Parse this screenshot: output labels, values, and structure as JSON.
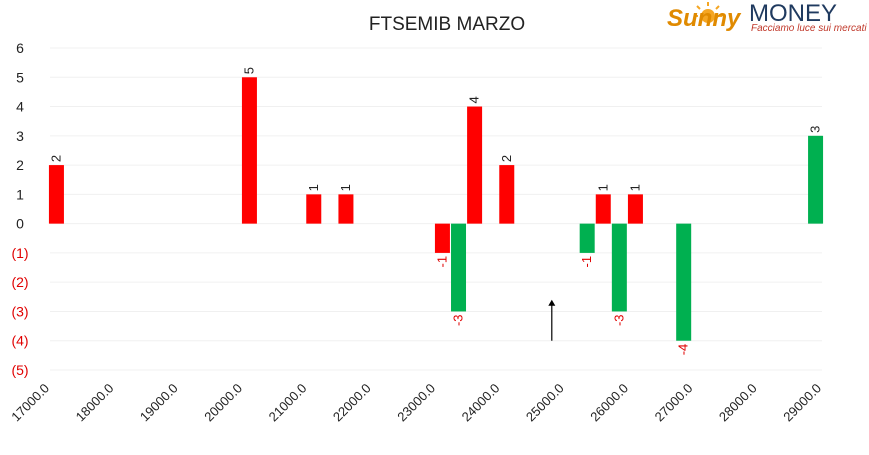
{
  "chart_data": {
    "type": "bar",
    "title": "FTSEMIB MARZO",
    "xlabel": "",
    "ylabel": "",
    "ylim": [
      -5,
      6
    ],
    "xlim": [
      17000,
      29000
    ],
    "grid": true,
    "x_ticks": [
      "17000.0",
      "18000.0",
      "19000.0",
      "20000.0",
      "21000.0",
      "22000.0",
      "23000.0",
      "24000.0",
      "25000.0",
      "26000.0",
      "27000.0",
      "28000.0",
      "29000.0"
    ],
    "y_ticks": [
      {
        "value": 6,
        "label": "6"
      },
      {
        "value": 5,
        "label": "5"
      },
      {
        "value": 4,
        "label": "4"
      },
      {
        "value": 3,
        "label": "3"
      },
      {
        "value": 2,
        "label": "2"
      },
      {
        "value": 1,
        "label": "1"
      },
      {
        "value": 0,
        "label": "0"
      },
      {
        "value": -1,
        "label": "(1)"
      },
      {
        "value": -2,
        "label": "(2)"
      },
      {
        "value": -3,
        "label": "(3)"
      },
      {
        "value": -4,
        "label": "(4)"
      },
      {
        "value": -5,
        "label": "(5)"
      }
    ],
    "bars": [
      {
        "x": 17100,
        "value": 2,
        "label": "2",
        "color": "#ff0000"
      },
      {
        "x": 20100,
        "value": 5,
        "label": "5",
        "color": "#ff0000"
      },
      {
        "x": 21100,
        "value": 1,
        "label": "1",
        "color": "#ff0000"
      },
      {
        "x": 21600,
        "value": 1,
        "label": "1",
        "color": "#ff0000"
      },
      {
        "x": 23100,
        "value": -1,
        "label": "-1",
        "color": "#ff0000"
      },
      {
        "x": 23350,
        "value": -3,
        "label": "-3",
        "color": "#00b050"
      },
      {
        "x": 23600,
        "value": 4,
        "label": "4",
        "color": "#ff0000"
      },
      {
        "x": 24100,
        "value": 2,
        "label": "2",
        "color": "#ff0000"
      },
      {
        "x": 25350,
        "value": -1,
        "label": "-1",
        "color": "#00b050"
      },
      {
        "x": 25600,
        "value": 1,
        "label": "1",
        "color": "#ff0000"
      },
      {
        "x": 25850,
        "value": -3,
        "label": "-3",
        "color": "#00b050"
      },
      {
        "x": 26100,
        "value": 1,
        "label": "1",
        "color": "#ff0000"
      },
      {
        "x": 26850,
        "value": -4,
        "label": "-4",
        "color": "#00b050"
      },
      {
        "x": 28900,
        "value": 3,
        "label": "3",
        "color": "#00b050"
      }
    ],
    "arrow": {
      "x": 24800,
      "from": -4,
      "to": -2.6
    },
    "colors": {
      "up": "#ff0000",
      "down": "#00b050",
      "negative_label": "#e00000",
      "positive_label": "#222222",
      "axis_text": "#222222"
    }
  },
  "logo": {
    "brand_script": "Sunny",
    "brand_caps": "MONEY",
    "tagline": "Facciamo luce sui mercati",
    "colors": {
      "sun": "#f5a623",
      "script": "#e08a00",
      "caps": "#1f3a5f",
      "tagline": "#c0392b"
    }
  }
}
